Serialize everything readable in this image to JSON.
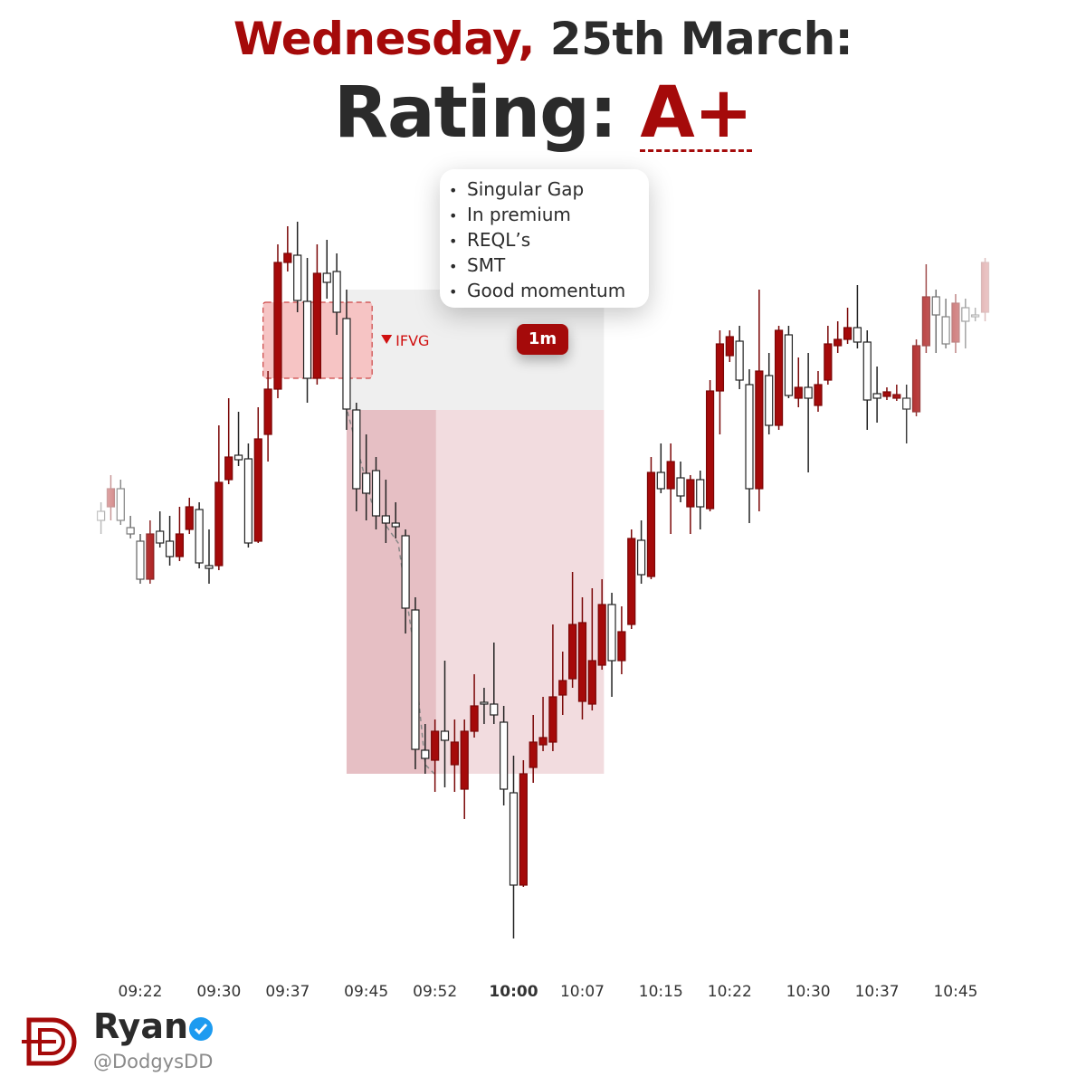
{
  "header": {
    "day": "Wednesday,",
    "date": "25th March:",
    "rating_label": "Rating:",
    "rating": "A+"
  },
  "notes": [
    "Singular Gap",
    "In premium",
    "REQL’s",
    "SMT",
    "Good momentum"
  ],
  "timeframe": "1m",
  "author": {
    "name": "Ryan",
    "handle": "@DodgysDD"
  },
  "chart_data": {
    "type": "candlestick",
    "x": [
      18,
      19,
      20,
      21,
      22,
      23,
      24,
      25,
      26,
      27,
      28,
      29,
      30,
      31,
      32,
      33,
      34,
      35,
      36,
      37,
      38,
      39,
      40,
      41,
      42,
      43,
      44,
      45,
      46,
      47,
      48,
      49,
      50,
      51,
      52,
      53,
      54,
      55,
      56,
      57,
      58,
      59,
      60,
      61,
      62,
      63,
      64,
      65,
      66,
      67,
      68,
      69,
      70,
      71,
      72,
      73,
      74,
      75,
      76,
      77,
      78,
      79,
      80,
      81,
      82,
      83,
      84,
      85,
      86,
      87,
      88,
      89,
      90,
      91,
      92,
      93,
      94,
      95,
      96,
      97,
      98,
      99,
      100,
      101,
      102,
      103,
      104,
      105,
      106,
      107,
      108
    ],
    "open": [
      635,
      640,
      660,
      617,
      602,
      560,
      613,
      602,
      585,
      615,
      637,
      575,
      575,
      670,
      697,
      693,
      602,
      720,
      770,
      910,
      918,
      867,
      782,
      898,
      900,
      848,
      747,
      677,
      680,
      630,
      622,
      608,
      526,
      371,
      360,
      392,
      355,
      328,
      392,
      424,
      422,
      402,
      324,
      222,
      352,
      377,
      380,
      432,
      450,
      425,
      422,
      465,
      532,
      470,
      510,
      603,
      563,
      678,
      660,
      672,
      640,
      670,
      638,
      768,
      807,
      823,
      775,
      660,
      785,
      730,
      830,
      760,
      772,
      752,
      780,
      818,
      825,
      838,
      822,
      765,
      762,
      760,
      760,
      745,
      818,
      872,
      850,
      822,
      860,
      852,
      855
    ],
    "high": [
      645,
      675,
      670,
      630,
      610,
      625,
      635,
      630,
      640,
      650,
      645,
      615,
      730,
      760,
      745,
      710,
      750,
      790,
      930,
      950,
      955,
      915,
      930,
      935,
      920,
      880,
      755,
      720,
      695,
      670,
      645,
      615,
      540,
      400,
      405,
      470,
      405,
      405,
      455,
      440,
      490,
      420,
      365,
      360,
      410,
      430,
      510,
      480,
      568,
      540,
      550,
      560,
      545,
      530,
      615,
      625,
      695,
      710,
      710,
      690,
      675,
      680,
      780,
      835,
      835,
      840,
      792,
      880,
      810,
      840,
      840,
      805,
      810,
      790,
      840,
      845,
      860,
      885,
      835,
      795,
      772,
      775,
      775,
      825,
      908,
      880,
      870,
      875,
      870,
      860,
      915
    ],
    "low": [
      610,
      625,
      620,
      605,
      555,
      555,
      595,
      575,
      580,
      610,
      572,
      555,
      570,
      665,
      685,
      595,
      600,
      690,
      760,
      900,
      855,
      755,
      775,
      870,
      830,
      725,
      635,
      625,
      615,
      600,
      605,
      500,
      350,
      345,
      325,
      330,
      325,
      295,
      385,
      400,
      400,
      310,
      163,
      220,
      335,
      370,
      370,
      410,
      440,
      405,
      415,
      460,
      430,
      455,
      505,
      555,
      560,
      655,
      610,
      645,
      610,
      615,
      635,
      720,
      800,
      770,
      622,
      635,
      720,
      725,
      760,
      750,
      678,
      745,
      775,
      810,
      820,
      815,
      725,
      733,
      758,
      757,
      710,
      740,
      810,
      810,
      815,
      810,
      815,
      845,
      845
    ],
    "close": [
      625,
      660,
      625,
      610,
      560,
      610,
      600,
      585,
      610,
      640,
      578,
      572,
      667,
      695,
      692,
      600,
      715,
      770,
      910,
      920,
      868,
      782,
      898,
      888,
      855,
      748,
      660,
      655,
      630,
      622,
      618,
      528,
      372,
      362,
      392,
      382,
      380,
      392,
      420,
      422,
      410,
      328,
      222,
      345,
      380,
      385,
      430,
      448,
      510,
      512,
      470,
      532,
      470,
      502,
      605,
      565,
      678,
      660,
      690,
      652,
      670,
      640,
      768,
      820,
      828,
      780,
      660,
      790,
      730,
      835,
      763,
      772,
      760,
      775,
      820,
      825,
      838,
      822,
      758,
      760,
      767,
      764,
      748,
      818,
      872,
      852,
      820,
      865,
      845,
      850,
      910
    ],
    "up_color": "#a50a0a",
    "down_color": "#ffffff",
    "xlim": [
      7.72,
      118.27
    ],
    "ylim": [
      0,
      1200
    ],
    "xticks": [
      {
        "value": 22,
        "label": "09:22"
      },
      {
        "value": 30,
        "label": "09:30"
      },
      {
        "value": 37,
        "label": "09:37"
      },
      {
        "value": 45,
        "label": "09:45"
      },
      {
        "value": 52,
        "label": "09:52"
      },
      {
        "value": 60,
        "label": "10:00"
      },
      {
        "value": 67,
        "label": "10:07"
      },
      {
        "value": 75,
        "label": "10:15"
      },
      {
        "value": 82,
        "label": "10:22"
      },
      {
        "value": 90,
        "label": "10:30"
      },
      {
        "value": 97,
        "label": "10:37"
      },
      {
        "value": 105,
        "label": "10:45"
      }
    ],
    "zones": [
      {
        "x": [
          43,
          69.2
        ],
        "y": [
          747,
          880
        ],
        "color": "#efefef"
      },
      {
        "x": [
          43,
          69.2
        ],
        "y": [
          345,
          747
        ],
        "color": "#f2dcdf"
      },
      {
        "x": [
          43,
          52.1
        ],
        "y": [
          345,
          747
        ],
        "color": "#e6bfc4"
      },
      {
        "name": "IFVG",
        "x": [
          34.5,
          45.6
        ],
        "y": [
          782,
          866
        ],
        "color": "#f6c4c4"
      }
    ]
  }
}
